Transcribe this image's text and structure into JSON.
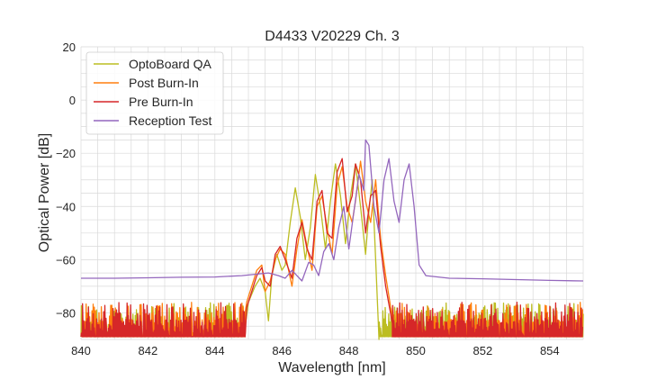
{
  "chart_data": {
    "type": "line",
    "title": "D4433 V20229 Ch. 3",
    "xlabel": "Wavelength [nm]",
    "ylabel": "Optical Power [dB]",
    "xlim": [
      840,
      855
    ],
    "ylim": [
      -90,
      20
    ],
    "xticks": [
      840,
      842,
      844,
      846,
      848,
      850,
      852,
      854
    ],
    "yticks": [
      20,
      0,
      -20,
      -40,
      -60,
      -80
    ],
    "grid": true,
    "legend_position": "top-left",
    "noise_floor_range": [
      -89,
      -76
    ],
    "series": [
      {
        "name": "OptoBoard QA",
        "color": "#bcbd22",
        "noise": {
          "x_from": 840,
          "x_to": 844.9,
          "x_resume": 848.9,
          "x_end": 855
        },
        "points": [
          [
            845.0,
            -76
          ],
          [
            845.2,
            -70
          ],
          [
            845.35,
            -67
          ],
          [
            845.5,
            -72
          ],
          [
            845.6,
            -83
          ],
          [
            845.7,
            -66
          ],
          [
            845.85,
            -58
          ],
          [
            846.0,
            -64
          ],
          [
            846.1,
            -62
          ],
          [
            846.25,
            -46
          ],
          [
            846.4,
            -33
          ],
          [
            846.55,
            -44
          ],
          [
            846.7,
            -60
          ],
          [
            846.85,
            -48
          ],
          [
            847.0,
            -28
          ],
          [
            847.15,
            -40
          ],
          [
            847.3,
            -56
          ],
          [
            847.45,
            -38
          ],
          [
            847.6,
            -24
          ],
          [
            847.75,
            -36
          ],
          [
            847.9,
            -54
          ],
          [
            848.05,
            -36
          ],
          [
            848.2,
            -24
          ],
          [
            848.35,
            -40
          ],
          [
            848.5,
            -58
          ],
          [
            848.6,
            -42
          ],
          [
            848.7,
            -30
          ],
          [
            848.8,
            -60
          ],
          [
            848.9,
            -90
          ]
        ]
      },
      {
        "name": "Post Burn-In",
        "color": "#ff7f0e",
        "noise": {
          "x_from": 840,
          "x_to": 844.9,
          "x_resume": 849.3,
          "x_end": 855
        },
        "points": [
          [
            844.95,
            -76
          ],
          [
            845.1,
            -70
          ],
          [
            845.25,
            -64
          ],
          [
            845.4,
            -62
          ],
          [
            845.5,
            -72
          ],
          [
            845.65,
            -68
          ],
          [
            845.8,
            -60
          ],
          [
            845.95,
            -56
          ],
          [
            846.1,
            -58
          ],
          [
            846.3,
            -70
          ],
          [
            846.45,
            -56
          ],
          [
            846.6,
            -45
          ],
          [
            846.75,
            -55
          ],
          [
            846.9,
            -64
          ],
          [
            847.05,
            -40
          ],
          [
            847.2,
            -36
          ],
          [
            847.35,
            -48
          ],
          [
            847.5,
            -58
          ],
          [
            847.65,
            -32
          ],
          [
            847.8,
            -25
          ],
          [
            847.95,
            -40
          ],
          [
            848.1,
            -46
          ],
          [
            848.2,
            -38
          ],
          [
            848.35,
            -23
          ],
          [
            848.5,
            -38
          ],
          [
            848.65,
            -46
          ],
          [
            848.8,
            -30
          ],
          [
            848.95,
            -52
          ],
          [
            849.1,
            -66
          ],
          [
            849.3,
            -82
          ]
        ]
      },
      {
        "name": "Pre Burn-In",
        "color": "#d62728",
        "noise": {
          "x_from": 840,
          "x_to": 844.9,
          "x_resume": 849.3,
          "x_end": 855
        },
        "points": [
          [
            844.95,
            -78
          ],
          [
            845.1,
            -72
          ],
          [
            845.25,
            -66
          ],
          [
            845.4,
            -63
          ],
          [
            845.5,
            -68
          ],
          [
            845.65,
            -70
          ],
          [
            845.8,
            -58
          ],
          [
            845.95,
            -55
          ],
          [
            846.1,
            -60
          ],
          [
            846.3,
            -67
          ],
          [
            846.45,
            -52
          ],
          [
            846.6,
            -46
          ],
          [
            846.75,
            -56
          ],
          [
            846.9,
            -60
          ],
          [
            847.05,
            -38
          ],
          [
            847.2,
            -34
          ],
          [
            847.35,
            -50
          ],
          [
            847.5,
            -52
          ],
          [
            847.65,
            -27
          ],
          [
            847.8,
            -22
          ],
          [
            847.95,
            -42
          ],
          [
            848.1,
            -36
          ],
          [
            848.2,
            -24
          ],
          [
            848.35,
            -30
          ],
          [
            848.5,
            -50
          ],
          [
            848.65,
            -36
          ],
          [
            848.8,
            -34
          ],
          [
            848.95,
            -55
          ],
          [
            849.1,
            -70
          ],
          [
            849.3,
            -84
          ]
        ]
      },
      {
        "name": "Reception Test",
        "color": "#9467bd",
        "points": [
          [
            840.0,
            -67
          ],
          [
            841.0,
            -67
          ],
          [
            842.0,
            -66.8
          ],
          [
            843.0,
            -66.6
          ],
          [
            844.0,
            -66.5
          ],
          [
            844.8,
            -66
          ],
          [
            845.2,
            -65.5
          ],
          [
            845.6,
            -65
          ],
          [
            845.9,
            -66
          ],
          [
            846.1,
            -67
          ],
          [
            846.3,
            -64
          ],
          [
            846.45,
            -66
          ],
          [
            846.6,
            -68
          ],
          [
            846.8,
            -61
          ],
          [
            846.95,
            -62
          ],
          [
            847.1,
            -66
          ],
          [
            847.25,
            -57
          ],
          [
            847.4,
            -54
          ],
          [
            847.55,
            -60
          ],
          [
            847.7,
            -48
          ],
          [
            847.85,
            -40
          ],
          [
            848.0,
            -56
          ],
          [
            848.15,
            -42
          ],
          [
            848.3,
            -28
          ],
          [
            848.45,
            -34
          ],
          [
            848.5,
            -15
          ],
          [
            848.6,
            -17
          ],
          [
            848.75,
            -40
          ],
          [
            848.9,
            -50
          ],
          [
            849.05,
            -30
          ],
          [
            849.2,
            -22
          ],
          [
            849.35,
            -38
          ],
          [
            849.5,
            -46
          ],
          [
            849.65,
            -30
          ],
          [
            849.8,
            -24
          ],
          [
            849.95,
            -40
          ],
          [
            850.1,
            -62
          ],
          [
            850.3,
            -66
          ],
          [
            851.0,
            -67
          ],
          [
            852.0,
            -67.2
          ],
          [
            853.0,
            -67.5
          ],
          [
            854.0,
            -67.8
          ],
          [
            855.0,
            -68
          ]
        ]
      }
    ]
  }
}
